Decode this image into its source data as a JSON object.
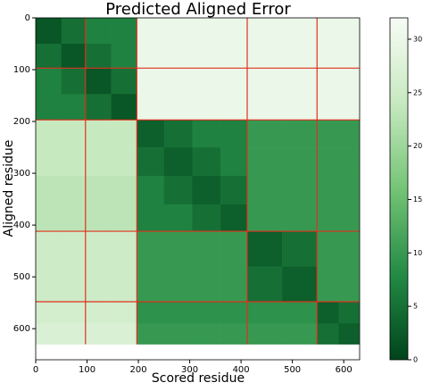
{
  "chart_data": {
    "type": "heatmap",
    "title": "Predicted Aligned Error",
    "x_label": "Scored residue",
    "y_label": "Aligned residue",
    "bins": [
      0,
      50,
      97,
      147,
      197,
      250,
      305,
      360,
      412,
      480,
      548,
      590,
      630
    ],
    "values": [
      [
        2,
        5,
        7,
        7,
        30,
        30,
        30,
        30,
        30,
        30,
        30,
        30
      ],
      [
        5,
        2,
        5,
        7,
        30,
        30,
        30,
        30,
        30,
        30,
        30,
        30
      ],
      [
        7,
        5,
        2,
        5,
        30,
        30,
        30,
        30,
        30,
        30,
        30,
        30
      ],
      [
        7,
        7,
        5,
        2,
        30,
        30,
        30,
        30,
        30,
        30,
        30,
        30
      ],
      [
        24,
        24,
        24,
        24,
        3,
        5,
        7,
        7,
        10,
        10,
        10,
        10
      ],
      [
        24,
        24,
        24,
        24,
        5,
        3,
        5,
        7,
        10,
        10,
        10,
        10
      ],
      [
        23,
        23,
        23,
        23,
        7,
        5,
        3,
        5,
        10,
        10,
        10,
        10
      ],
      [
        23,
        23,
        23,
        23,
        7,
        7,
        5,
        3,
        10,
        10,
        10,
        10
      ],
      [
        25,
        25,
        25,
        25,
        10,
        10,
        10,
        10,
        3,
        5,
        10,
        10
      ],
      [
        25,
        25,
        25,
        25,
        10,
        10,
        10,
        10,
        5,
        3,
        10,
        10
      ],
      [
        26,
        26,
        26,
        26,
        9,
        9,
        9,
        9,
        9,
        9,
        3,
        5
      ],
      [
        27,
        27,
        27,
        27,
        10,
        10,
        10,
        10,
        10,
        10,
        5,
        3
      ]
    ],
    "domain_boundaries": [
      97,
      197,
      412,
      548
    ],
    "boundary_color": "#e0301e",
    "xlim": [
      0,
      631
    ],
    "ylim": [
      0,
      660
    ],
    "y_inverted": true,
    "xticks": [
      0,
      100,
      200,
      300,
      400,
      500,
      600
    ],
    "yticks": [
      0,
      100,
      200,
      300,
      400,
      500,
      600
    ],
    "clim": [
      0,
      32
    ],
    "colorbar_ticks": [
      0,
      5,
      10,
      15,
      20,
      25,
      30
    ],
    "colormap": [
      "#00441b",
      "#238b45",
      "#74c476",
      "#c7e9c0",
      "#f7fcf5"
    ]
  }
}
